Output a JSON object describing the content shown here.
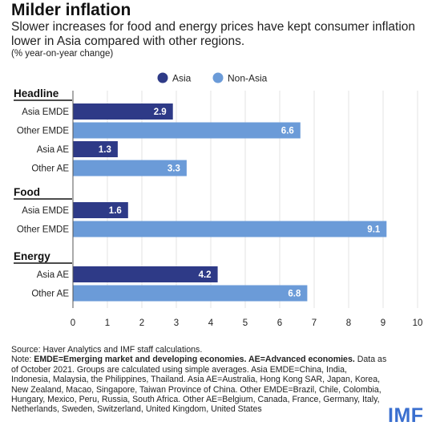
{
  "title": "Milder inflation",
  "subtitle": "Slower increases for food and energy prices have kept consumer inflation lower in Asia compared with other regions.",
  "unit": "(% year-on-year change)",
  "legend": [
    {
      "label": "Asia",
      "color": "#2e3a87"
    },
    {
      "label": "Non-Asia",
      "color": "#6b9bd8"
    }
  ],
  "chart_data": {
    "type": "bar",
    "orientation": "horizontal",
    "xlim": [
      0,
      10
    ],
    "x_ticks": [
      0,
      1,
      2,
      3,
      4,
      5,
      6,
      7,
      8,
      9,
      10
    ],
    "legend_position": "top-center",
    "groups": [
      {
        "name": "Headline",
        "bars": [
          {
            "category": "Asia EMDE",
            "value": 2.9,
            "label": "2.9",
            "series": "Asia"
          },
          {
            "category": "Other EMDE",
            "value": 6.6,
            "label": "6.6",
            "series": "Non-Asia"
          },
          {
            "category": "Asia AE",
            "value": 1.3,
            "label": "1.3",
            "series": "Asia"
          },
          {
            "category": "Other AE",
            "value": 3.3,
            "label": "3.3",
            "series": "Non-Asia"
          }
        ]
      },
      {
        "name": "Food",
        "bars": [
          {
            "category": "Asia EMDE",
            "value": 1.6,
            "label": "1.6",
            "series": "Asia"
          },
          {
            "category": "Other EMDE",
            "value": 9.1,
            "label": "9.1",
            "series": "Non-Asia"
          }
        ]
      },
      {
        "name": "Energy",
        "bars": [
          {
            "category": "Asia AE",
            "value": 4.2,
            "label": "4.2",
            "series": "Asia"
          },
          {
            "category": "Other AE",
            "value": 6.8,
            "label": "6.8",
            "series": "Non-Asia"
          }
        ]
      }
    ]
  },
  "footer": {
    "source": "Source: Haver Analytics and IMF staff calculations.",
    "note_prefix": "Note: ",
    "note_bold": "EMDE=Emerging market and developing economies. AE=Advanced economies.",
    "note_rest": " Data as of October 2021. Groups are calculated using simple averages. Asia EMDE=China, India, Indonesia, Malaysia, the Philippines, Thailand. Asia AE=Australia, Hong Kong SAR, Japan, Korea, New Zealand, Macao, Singapore, Taiwan Province of China. Other EMDE=Brazil, Chile, Colombia, Hungary, Mexico, Peru, Russia, South Africa. Other AE=Belgium, Canada, France, Germany, Italy, Netherlands, Sweden, Switzerland, United Kingdom, United States"
  },
  "logo": "IMF"
}
